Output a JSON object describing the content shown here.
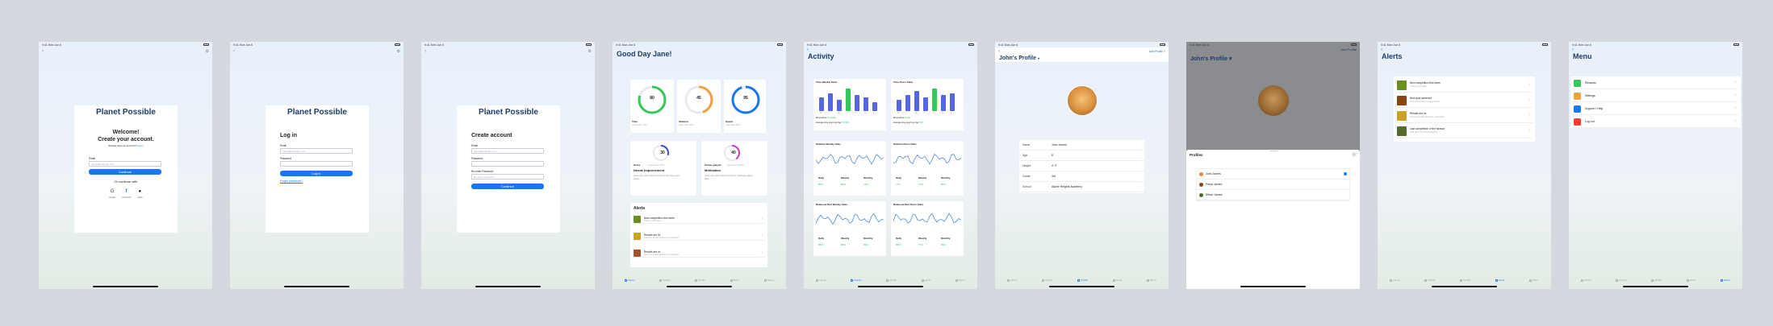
{
  "status": {
    "time": "9:41  Mon Jun 6",
    "battery": "100%"
  },
  "auth": {
    "brand": "Planet Possible",
    "welcome": {
      "heading": "Welcome!",
      "subheading": "Create your account.",
      "already": "Already have an account?",
      "login_link": "Log in",
      "email_label": "Email",
      "email_placeholder": "name@example.com",
      "continue": "Continue",
      "or": "Or continue with",
      "providers": [
        "Google",
        "Facebook",
        "Apple"
      ]
    },
    "login": {
      "title": "Log in",
      "email_label": "Email",
      "email_placeholder": "name@example.com",
      "password_label": "Password",
      "button": "Log in",
      "forgot": "Forgot password?"
    },
    "create": {
      "title": "Create account",
      "email_label": "Email",
      "email_placeholder": "name@example.com",
      "password_label": "Password",
      "reenter_label": "Re-enter Password",
      "reenter_placeholder": "Re-enter password",
      "button": "Continue"
    }
  },
  "dashboard": {
    "greeting": "Good Day Jane!",
    "gauges": [
      {
        "label": "Time",
        "value": 80,
        "note": "Last week: 72%",
        "color": "#34c759",
        "pct": 0.8
      },
      {
        "label": "Stamina",
        "value": 45,
        "note": "Last week: 50%",
        "color": "#f0a040",
        "pct": 0.45
      },
      {
        "label": "Speed",
        "value": 95,
        "note": "Last week: 90%",
        "color": "#1877f2",
        "pct": 0.95
      }
    ],
    "score": {
      "value": 30,
      "label": "Score",
      "note": "Last week 27%",
      "title": "Needs Improvement",
      "desc": "Here are some tips on how to improve your score..."
    },
    "games": {
      "value": 40,
      "label": "Games played",
      "note": "Last week 38%",
      "title": "Motivation",
      "desc": "Here are some tips on how to motivate game play..."
    },
    "alerts_title": "Alerts",
    "alerts": [
      {
        "title": "New competition this week",
        "sub": "Check it out today",
        "color": "#6b8e23"
      },
      {
        "title": "Results are in!",
        "sub": "Discover all last season's competition",
        "color": "#c9a227"
      },
      {
        "title": "Results are in!",
        "sub": "Discover all last season's competition",
        "color": "#a0522d"
      }
    ]
  },
  "activity": {
    "title": "Activity",
    "charts": [
      {
        "title": "Time Weekly Stats",
        "avg": "Average time spent per day",
        "avg_val": "74.94%",
        "most": "Most Active",
        "most_val": "Thursday",
        "bars": [
          6,
          8,
          5,
          10,
          7,
          6,
          4
        ],
        "highlight": 3
      },
      {
        "title": "Time Peers Stats",
        "avg": "Average time spent per day",
        "avg_val": "50%",
        "most": "Most Active",
        "most_val": "Friday",
        "bars": [
          5,
          7,
          9,
          6,
          10,
          7,
          8
        ],
        "highlight": 4
      }
    ],
    "lines": [
      {
        "title": "Stamina Weekly Stats",
        "daily": "80%",
        "weekly": "88%",
        "monthly": "79%"
      },
      {
        "title": "Stamina Peers Stats",
        "daily": "77%",
        "weekly": "70%",
        "monthly": "80%"
      },
      {
        "title": "Balanced Diet Weekly Stats",
        "daily": "80%",
        "weekly": "88%",
        "monthly": "83%"
      },
      {
        "title": "Balanced Diet Peers Stats",
        "daily": "80%",
        "weekly": "77%",
        "monthly": "83%"
      }
    ],
    "col_labels": [
      "Daily",
      "Weekly",
      "Monthly"
    ],
    "days": [
      "M",
      "T",
      "W",
      "T",
      "F",
      "S",
      "S"
    ]
  },
  "profile": {
    "title": "John's Profile",
    "add": "Add Profile",
    "fields": [
      {
        "k": "Name",
        "v": "John James"
      },
      {
        "k": "Age",
        "v": "8"
      },
      {
        "k": "Height",
        "v": "4' 3\""
      },
      {
        "k": "Grade",
        "v": "3rd"
      },
      {
        "k": "School",
        "v": "Alpine Heights Academy"
      }
    ],
    "sheet_title": "Profiles",
    "sheet_items": [
      "John James",
      "Freya James",
      "Ethan James"
    ]
  },
  "alerts_page": {
    "title": "Alerts",
    "items": [
      {
        "title": "New competition this week",
        "sub": "Check it out today",
        "color": "#6b8e23"
      },
      {
        "title": "New goal achieved",
        "sub": "Your achievement was recorded",
        "color": "#8b4513"
      },
      {
        "title": "Results are in!",
        "sub": "Discover all last season's competition",
        "color": "#c9a227"
      },
      {
        "title": "Last competition of the season",
        "sub": "Sign up to join the competition",
        "color": "#556b2f"
      }
    ]
  },
  "menu_page": {
    "title": "Menu",
    "items": [
      {
        "label": "Rewards",
        "color": "#34c759"
      },
      {
        "label": "Settings",
        "color": "#f0a040"
      },
      {
        "label": "Support / Help",
        "color": "#1877f2"
      },
      {
        "label": "Log out",
        "color": "#ff3b30"
      }
    ]
  },
  "tabs": [
    "Home",
    "Activity",
    "Profile",
    "Alerts",
    "Menu"
  ]
}
